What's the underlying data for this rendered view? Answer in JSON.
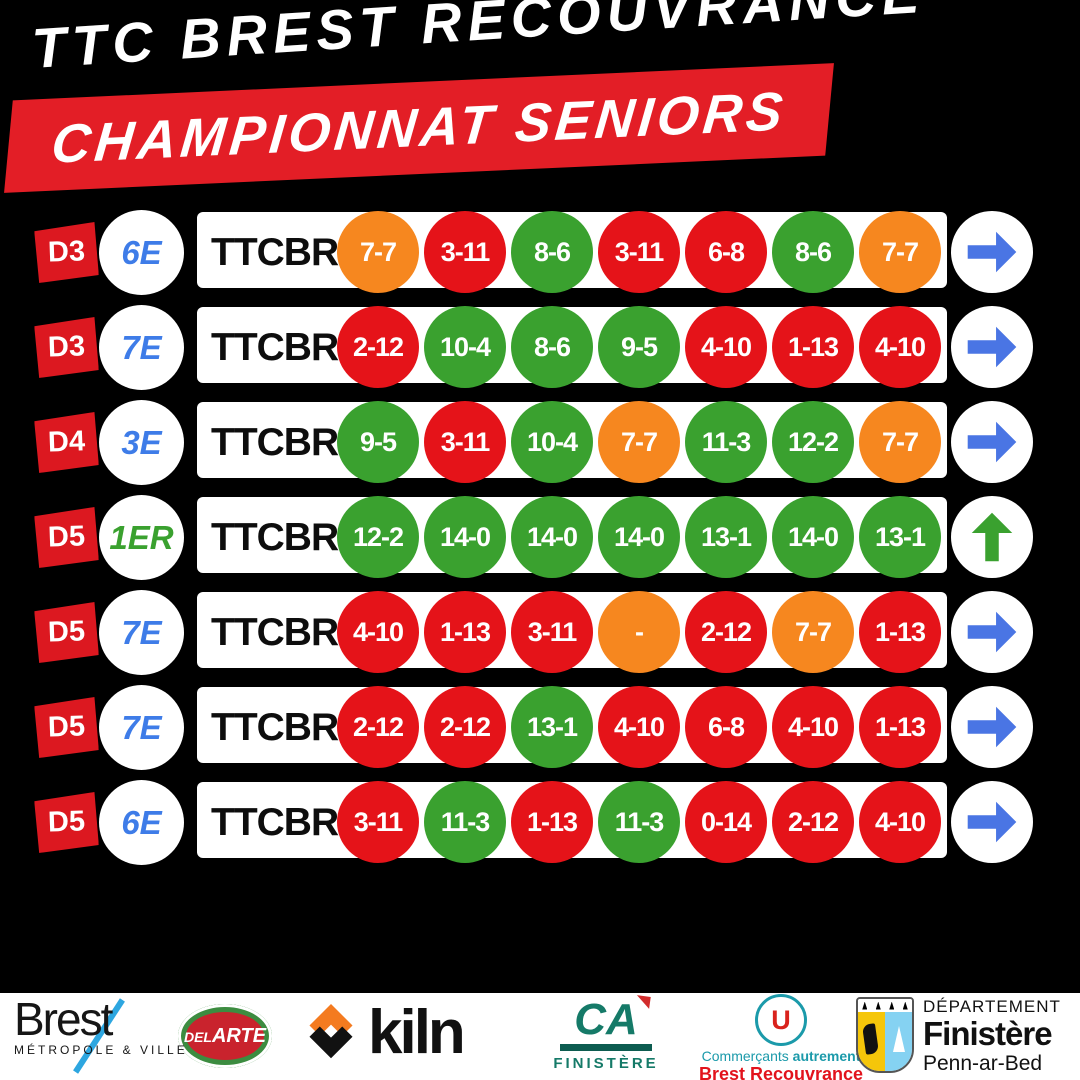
{
  "header": {
    "title": "TTC BREST RECOUVRANCE",
    "subtitle": "CHAMPIONNAT SENIORS"
  },
  "colors": {
    "win": "#3aa12f",
    "loss": "#e51319",
    "draw": "#f6871f",
    "arrow_right": "#4a75e4",
    "arrow_up": "#3aa12f",
    "badge_red": "#dc1820",
    "banner_red": "#e31e26",
    "rank_blue": "#3e7ce8",
    "rank_green": "#3aa12f"
  },
  "rows": [
    {
      "division": "D3",
      "rank": "6E",
      "rank_color": "blue",
      "team": "TTCBR 7",
      "arrow": "right",
      "results": [
        {
          "score": "7-7",
          "result": "draw"
        },
        {
          "score": "3-11",
          "result": "loss"
        },
        {
          "score": "8-6",
          "result": "win"
        },
        {
          "score": "3-11",
          "result": "loss"
        },
        {
          "score": "6-8",
          "result": "loss"
        },
        {
          "score": "8-6",
          "result": "win"
        },
        {
          "score": "7-7",
          "result": "draw"
        }
      ]
    },
    {
      "division": "D3",
      "rank": "7E",
      "rank_color": "blue",
      "team": "TTCBR 8",
      "arrow": "right",
      "results": [
        {
          "score": "2-12",
          "result": "loss"
        },
        {
          "score": "10-4",
          "result": "win"
        },
        {
          "score": "8-6",
          "result": "win"
        },
        {
          "score": "9-5",
          "result": "win"
        },
        {
          "score": "4-10",
          "result": "loss"
        },
        {
          "score": "1-13",
          "result": "loss"
        },
        {
          "score": "4-10",
          "result": "loss"
        }
      ]
    },
    {
      "division": "D4",
      "rank": "3E",
      "rank_color": "blue",
      "team": "TTCBR 9",
      "arrow": "right",
      "results": [
        {
          "score": "9-5",
          "result": "win"
        },
        {
          "score": "3-11",
          "result": "loss"
        },
        {
          "score": "10-4",
          "result": "win"
        },
        {
          "score": "7-7",
          "result": "draw"
        },
        {
          "score": "11-3",
          "result": "win"
        },
        {
          "score": "12-2",
          "result": "win"
        },
        {
          "score": "7-7",
          "result": "draw"
        }
      ]
    },
    {
      "division": "D5",
      "rank": "1ER",
      "rank_color": "green",
      "team": "TTCBR 10",
      "arrow": "up",
      "results": [
        {
          "score": "12-2",
          "result": "win"
        },
        {
          "score": "14-0",
          "result": "win"
        },
        {
          "score": "14-0",
          "result": "win"
        },
        {
          "score": "14-0",
          "result": "win"
        },
        {
          "score": "13-1",
          "result": "win"
        },
        {
          "score": "14-0",
          "result": "win"
        },
        {
          "score": "13-1",
          "result": "win"
        }
      ]
    },
    {
      "division": "D5",
      "rank": "7E",
      "rank_color": "blue",
      "team": "TTCBR 11",
      "arrow": "right",
      "results": [
        {
          "score": "4-10",
          "result": "loss"
        },
        {
          "score": "1-13",
          "result": "loss"
        },
        {
          "score": "3-11",
          "result": "loss"
        },
        {
          "score": "-",
          "result": "draw"
        },
        {
          "score": "2-12",
          "result": "loss"
        },
        {
          "score": "7-7",
          "result": "draw"
        },
        {
          "score": "1-13",
          "result": "loss"
        }
      ]
    },
    {
      "division": "D5",
      "rank": "7E",
      "rank_color": "blue",
      "team": "TTCBR 12",
      "arrow": "right",
      "results": [
        {
          "score": "2-12",
          "result": "loss"
        },
        {
          "score": "2-12",
          "result": "loss"
        },
        {
          "score": "13-1",
          "result": "win"
        },
        {
          "score": "4-10",
          "result": "loss"
        },
        {
          "score": "6-8",
          "result": "loss"
        },
        {
          "score": "4-10",
          "result": "loss"
        },
        {
          "score": "1-13",
          "result": "loss"
        }
      ]
    },
    {
      "division": "D5",
      "rank": "6E",
      "rank_color": "blue",
      "team": "TTCBR 13",
      "arrow": "right",
      "results": [
        {
          "score": "3-11",
          "result": "loss"
        },
        {
          "score": "11-3",
          "result": "win"
        },
        {
          "score": "1-13",
          "result": "loss"
        },
        {
          "score": "11-3",
          "result": "win"
        },
        {
          "score": "0-14",
          "result": "loss"
        },
        {
          "score": "2-12",
          "result": "loss"
        },
        {
          "score": "4-10",
          "result": "loss"
        }
      ]
    }
  ],
  "footer": {
    "brest": {
      "name": "Brest",
      "subtitle": "MÉTROPOLE & VILLE"
    },
    "del_arte": {
      "part1": "DEL",
      "part2": "ARTE"
    },
    "kiln": {
      "name": "kiln"
    },
    "credit_agricole": {
      "monogram": "CA",
      "region": "FINISTÈRE"
    },
    "super_u": {
      "letter": "U",
      "tagline_normal": "Commerçants",
      "tagline_bold": "autrement",
      "location": "Brest Recouvrance"
    },
    "finistere": {
      "line1": "DÉPARTEMENT",
      "line2": "Finistère",
      "line3": "Penn-ar-Bed"
    }
  },
  "chart_data": {
    "type": "table",
    "title": "TTC BREST RECOUVRANCE — CHAMPIONNAT SENIORS",
    "rows": [
      [
        "D3",
        "6E",
        "TTCBR 7",
        "7-7",
        "3-11",
        "8-6",
        "3-11",
        "6-8",
        "8-6",
        "7-7",
        "right-arrow"
      ],
      [
        "D3",
        "7E",
        "TTCBR 8",
        "2-12",
        "10-4",
        "8-6",
        "9-5",
        "4-10",
        "1-13",
        "4-10",
        "right-arrow"
      ],
      [
        "D4",
        "3E",
        "TTCBR 9",
        "9-5",
        "3-11",
        "10-4",
        "7-7",
        "11-3",
        "12-2",
        "7-7",
        "right-arrow"
      ],
      [
        "D5",
        "1ER",
        "TTCBR 10",
        "12-2",
        "14-0",
        "14-0",
        "14-0",
        "13-1",
        "14-0",
        "13-1",
        "up-arrow"
      ],
      [
        "D5",
        "7E",
        "TTCBR 11",
        "4-10",
        "1-13",
        "3-11",
        "-",
        "2-12",
        "7-7",
        "1-13",
        "right-arrow"
      ],
      [
        "D5",
        "7E",
        "TTCBR 12",
        "2-12",
        "2-12",
        "13-1",
        "4-10",
        "6-8",
        "4-10",
        "1-13",
        "right-arrow"
      ],
      [
        "D5",
        "6E",
        "TTCBR 13",
        "3-11",
        "11-3",
        "1-13",
        "11-3",
        "0-14",
        "2-12",
        "4-10",
        "right-arrow"
      ]
    ]
  }
}
